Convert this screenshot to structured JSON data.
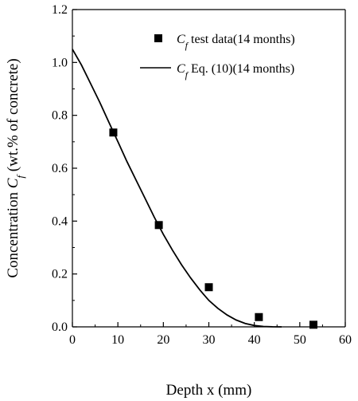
{
  "chart_data": {
    "type": "scatter",
    "xlabel": "Depth x (mm)",
    "ylabel": {
      "prefix": "Concentration ",
      "symbol": "C",
      "subscript": "f",
      "suffix": " (wt.% of concrete)"
    },
    "xlim": [
      0,
      60
    ],
    "ylim": [
      0.0,
      1.2
    ],
    "x_ticks": [
      "0",
      "10",
      "20",
      "30",
      "40",
      "50",
      "60"
    ],
    "y_ticks": [
      "0.0",
      "0.2",
      "0.4",
      "0.6",
      "0.8",
      "1.0",
      "1.2"
    ],
    "grid": false,
    "legend_position": "top-right",
    "series": [
      {
        "kind": "scatter",
        "marker": "square",
        "legend": {
          "symbol": "C",
          "subscript": "f",
          "text": " test data(14 months)"
        },
        "points": [
          {
            "x": 9,
            "y": 0.735
          },
          {
            "x": 19,
            "y": 0.385
          },
          {
            "x": 30,
            "y": 0.15
          },
          {
            "x": 41,
            "y": 0.037
          },
          {
            "x": 53,
            "y": 0.008
          }
        ]
      },
      {
        "kind": "line",
        "legend": {
          "symbol": "C",
          "subscript": "f",
          "text": " Eq. (10)(14 months)"
        },
        "points": [
          {
            "x": 0,
            "y": 1.05
          },
          {
            "x": 2,
            "y": 0.99
          },
          {
            "x": 4,
            "y": 0.92
          },
          {
            "x": 6,
            "y": 0.85
          },
          {
            "x": 8,
            "y": 0.775
          },
          {
            "x": 10,
            "y": 0.7
          },
          {
            "x": 12,
            "y": 0.625
          },
          {
            "x": 14,
            "y": 0.555
          },
          {
            "x": 16,
            "y": 0.485
          },
          {
            "x": 18,
            "y": 0.415
          },
          {
            "x": 20,
            "y": 0.35
          },
          {
            "x": 22,
            "y": 0.29
          },
          {
            "x": 24,
            "y": 0.235
          },
          {
            "x": 26,
            "y": 0.185
          },
          {
            "x": 28,
            "y": 0.14
          },
          {
            "x": 30,
            "y": 0.1
          },
          {
            "x": 32,
            "y": 0.07
          },
          {
            "x": 34,
            "y": 0.045
          },
          {
            "x": 36,
            "y": 0.026
          },
          {
            "x": 38,
            "y": 0.013
          },
          {
            "x": 40,
            "y": 0.005
          },
          {
            "x": 42,
            "y": 0.0015
          },
          {
            "x": 44,
            "y": 0.0002
          },
          {
            "x": 46,
            "y": 0.0
          }
        ]
      }
    ]
  }
}
